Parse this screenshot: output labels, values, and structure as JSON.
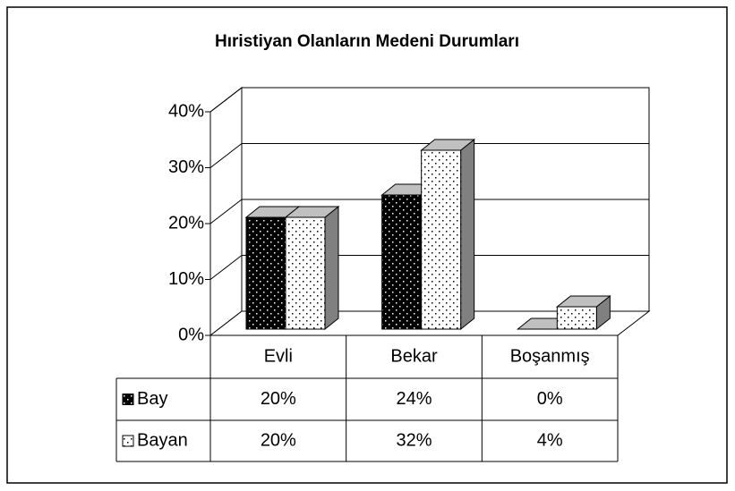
{
  "chart_data": {
    "type": "bar3d",
    "title": "Hıristiyan Olanların Medeni Durumları",
    "categories": [
      "Evli",
      "Bekar",
      "Boşanmış"
    ],
    "series": [
      {
        "name": "Bay",
        "color": "#000000",
        "values": [
          20,
          24,
          0
        ],
        "value_labels": [
          "20%",
          "24%",
          "0%"
        ]
      },
      {
        "name": "Bayan",
        "color": "#ffffff",
        "values": [
          20,
          32,
          4
        ],
        "value_labels": [
          "20%",
          "32%",
          "4%"
        ]
      }
    ],
    "ylim": [
      0,
      40
    ],
    "yticks": [
      {
        "value": 0,
        "label": "0%"
      },
      {
        "value": 10,
        "label": "10%"
      },
      {
        "value": 20,
        "label": "20%"
      },
      {
        "value": 30,
        "label": "30%"
      },
      {
        "value": 40,
        "label": "40%"
      }
    ],
    "grid": true,
    "data_table": true
  }
}
